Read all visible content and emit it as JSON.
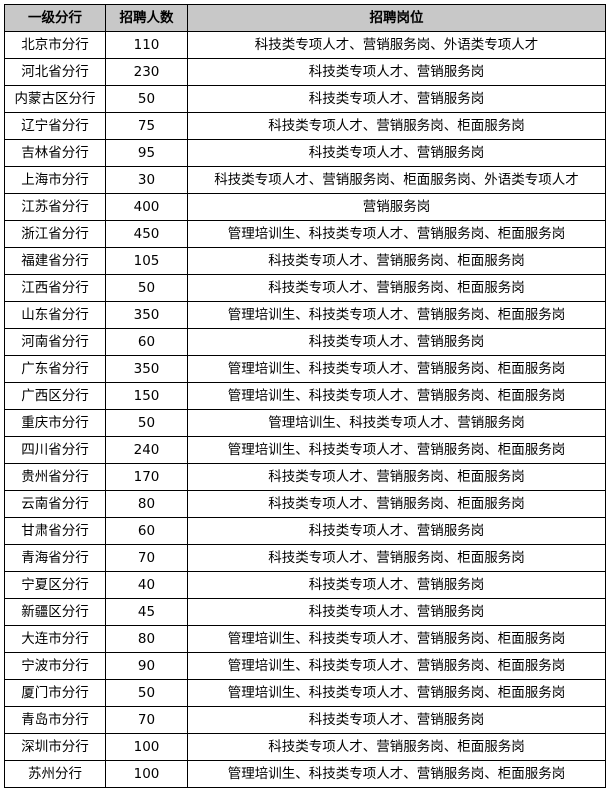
{
  "table": {
    "headers": [
      "一级分行",
      "招聘人数",
      "招聘岗位"
    ],
    "rows": [
      [
        "北京市分行",
        "110",
        "科技类专项人才、营销服务岗、外语类专项人才"
      ],
      [
        "河北省分行",
        "230",
        "科技类专项人才、营销服务岗"
      ],
      [
        "内蒙古区分行",
        "50",
        "科技类专项人才、营销服务岗"
      ],
      [
        "辽宁省分行",
        "75",
        "科技类专项人才、营销服务岗、柜面服务岗"
      ],
      [
        "吉林省分行",
        "95",
        "科技类专项人才、营销服务岗"
      ],
      [
        "上海市分行",
        "30",
        "科技类专项人才、营销服务岗、柜面服务岗、外语类专项人才"
      ],
      [
        "江苏省分行",
        "400",
        "营销服务岗"
      ],
      [
        "浙江省分行",
        "450",
        "管理培训生、科技类专项人才、营销服务岗、柜面服务岗"
      ],
      [
        "福建省分行",
        "105",
        "科技类专项人才、营销服务岗、柜面服务岗"
      ],
      [
        "江西省分行",
        "50",
        "科技类专项人才、营销服务岗、柜面服务岗"
      ],
      [
        "山东省分行",
        "350",
        "管理培训生、科技类专项人才、营销服务岗、柜面服务岗"
      ],
      [
        "河南省分行",
        "60",
        "科技类专项人才、营销服务岗"
      ],
      [
        "广东省分行",
        "350",
        "管理培训生、科技类专项人才、营销服务岗、柜面服务岗"
      ],
      [
        "广西区分行",
        "150",
        "管理培训生、科技类专项人才、营销服务岗、柜面服务岗"
      ],
      [
        "重庆市分行",
        "50",
        "管理培训生、科技类专项人才、营销服务岗"
      ],
      [
        "四川省分行",
        "240",
        "管理培训生、科技类专项人才、营销服务岗、柜面服务岗"
      ],
      [
        "贵州省分行",
        "170",
        "科技类专项人才、营销服务岗、柜面服务岗"
      ],
      [
        "云南省分行",
        "80",
        "科技类专项人才、营销服务岗、柜面服务岗"
      ],
      [
        "甘肃省分行",
        "60",
        "科技类专项人才、营销服务岗"
      ],
      [
        "青海省分行",
        "70",
        "科技类专项人才、营销服务岗、柜面服务岗"
      ],
      [
        "宁夏区分行",
        "40",
        "科技类专项人才、营销服务岗"
      ],
      [
        "新疆区分行",
        "45",
        "科技类专项人才、营销服务岗"
      ],
      [
        "大连市分行",
        "80",
        "管理培训生、科技类专项人才、营销服务岗、柜面服务岗"
      ],
      [
        "宁波市分行",
        "90",
        "管理培训生、科技类专项人才、营销服务岗、柜面服务岗"
      ],
      [
        "厦门市分行",
        "50",
        "管理培训生、科技类专项人才、营销服务岗、柜面服务岗"
      ],
      [
        "青岛市分行",
        "70",
        "科技类专项人才、营销服务岗"
      ],
      [
        "深圳市分行",
        "100",
        "科技类专项人才、营销服务岗、柜面服务岗"
      ],
      [
        "苏州分行",
        "100",
        "管理培训生、科技类专项人才、营销服务岗、柜面服务岗"
      ]
    ]
  }
}
